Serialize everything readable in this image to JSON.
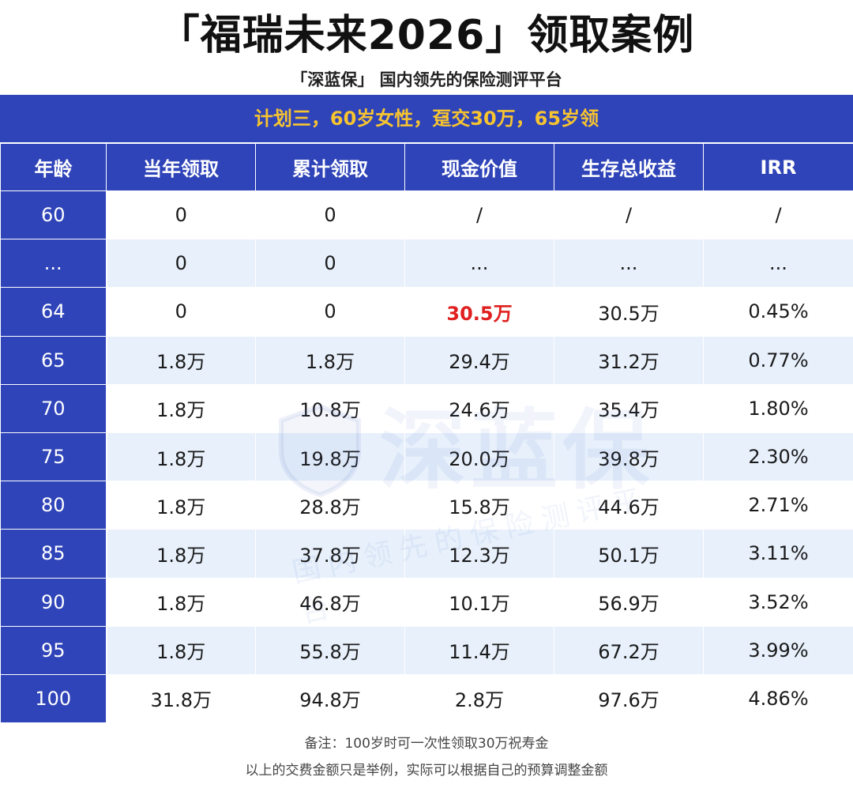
{
  "title": "「福瑞未来2026」领取案例",
  "subtitle": "「深蓝保」 国内领先的保险测评平台",
  "plan": "计划三，60岁女性，趸交30万，65岁领",
  "table": {
    "headers": [
      "年龄",
      "当年领取",
      "累计领取",
      "现金价值",
      "生存总收益",
      "IRR"
    ],
    "rows": [
      [
        "60",
        "0",
        "0",
        "/",
        "/",
        "/"
      ],
      [
        "...",
        "0",
        "0",
        "...",
        "...",
        "..."
      ],
      [
        "64",
        "0",
        "0",
        "30.5万",
        "30.5万",
        "0.45%"
      ],
      [
        "65",
        "1.8万",
        "1.8万",
        "29.4万",
        "31.2万",
        "0.77%"
      ],
      [
        "70",
        "1.8万",
        "10.8万",
        "24.6万",
        "35.4万",
        "1.80%"
      ],
      [
        "75",
        "1.8万",
        "19.8万",
        "20.0万",
        "39.8万",
        "2.30%"
      ],
      [
        "80",
        "1.8万",
        "28.8万",
        "15.8万",
        "44.6万",
        "2.71%"
      ],
      [
        "85",
        "1.8万",
        "37.8万",
        "12.3万",
        "50.1万",
        "3.11%"
      ],
      [
        "90",
        "1.8万",
        "46.8万",
        "10.1万",
        "56.9万",
        "3.52%"
      ],
      [
        "95",
        "1.8万",
        "55.8万",
        "11.4万",
        "67.2万",
        "3.99%"
      ],
      [
        "100",
        "31.8万",
        "94.8万",
        "2.8万",
        "97.6万",
        "4.86%"
      ]
    ],
    "highlight_color": "#e02020",
    "header_color": "#2f44b8",
    "stripe_color": "#e7f0fb"
  },
  "watermark": {
    "main": "深蓝保",
    "sub": "国内领先的保险测评平台"
  },
  "notes": [
    "备注：100岁时可一次性领取30万祝寿金",
    "以上的交费金额只是举例，实际可以根据自己的预算调整金额"
  ]
}
